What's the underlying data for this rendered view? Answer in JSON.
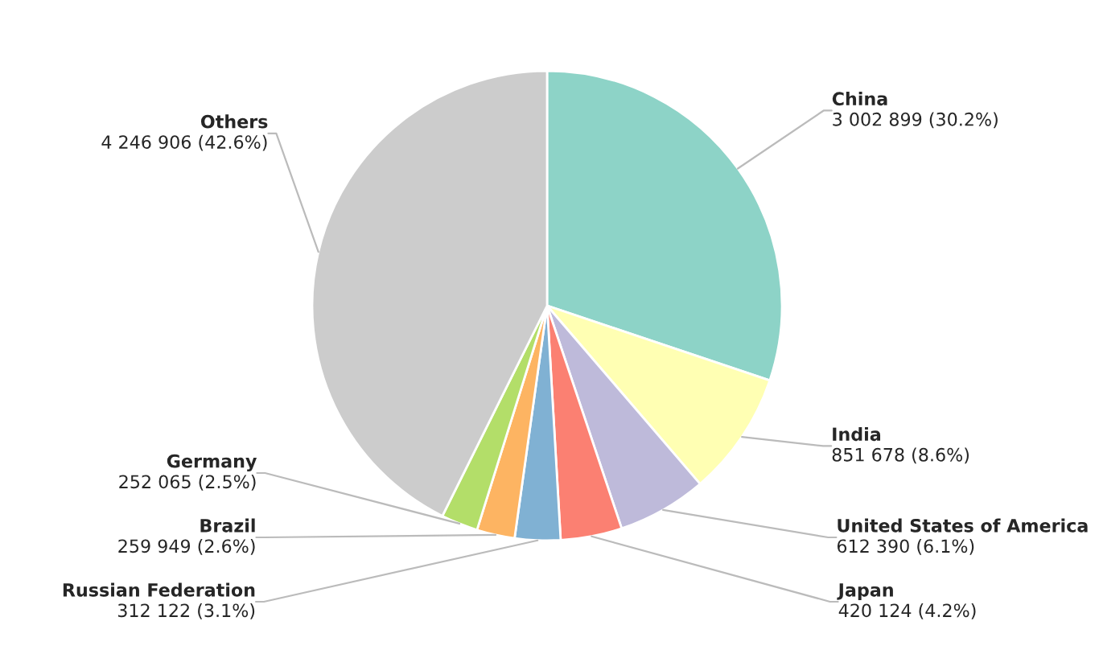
{
  "chart_data": {
    "type": "pie",
    "categories": [
      "China",
      "India",
      "United States of America",
      "Japan",
      "Russian Federation",
      "Brazil",
      "Germany",
      "Others"
    ],
    "values": [
      3002899,
      851678,
      612390,
      420124,
      312122,
      259949,
      252065,
      4246906
    ],
    "value_labels": [
      "3 002 899 (30.2%)",
      "851 678 (8.6%)",
      "612 390 (6.1%)",
      "420 124 (4.2%)",
      "312 122 (3.1%)",
      "259 949 (2.6%)",
      "252 065 (2.5%)",
      "4 246 906 (42.6%)"
    ],
    "colors": [
      "#8dd3c7",
      "#ffffb3",
      "#bebada",
      "#fb8072",
      "#80b1d3",
      "#fdb462",
      "#b3de69",
      "#cccccc"
    ]
  }
}
